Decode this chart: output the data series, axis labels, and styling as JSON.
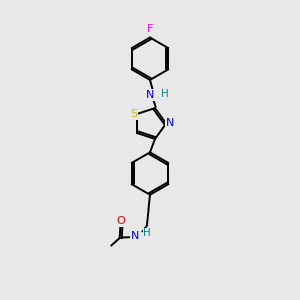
{
  "bg_color": "#e8e8e8",
  "atom_colors": {
    "C": "#000000",
    "N": "#0000cc",
    "O": "#dd0000",
    "S": "#bbbb00",
    "F": "#ee00ee",
    "H": "#008888"
  },
  "bond_color": "#000000",
  "bond_width": 1.4,
  "figsize": [
    3.0,
    3.0
  ],
  "dpi": 100
}
